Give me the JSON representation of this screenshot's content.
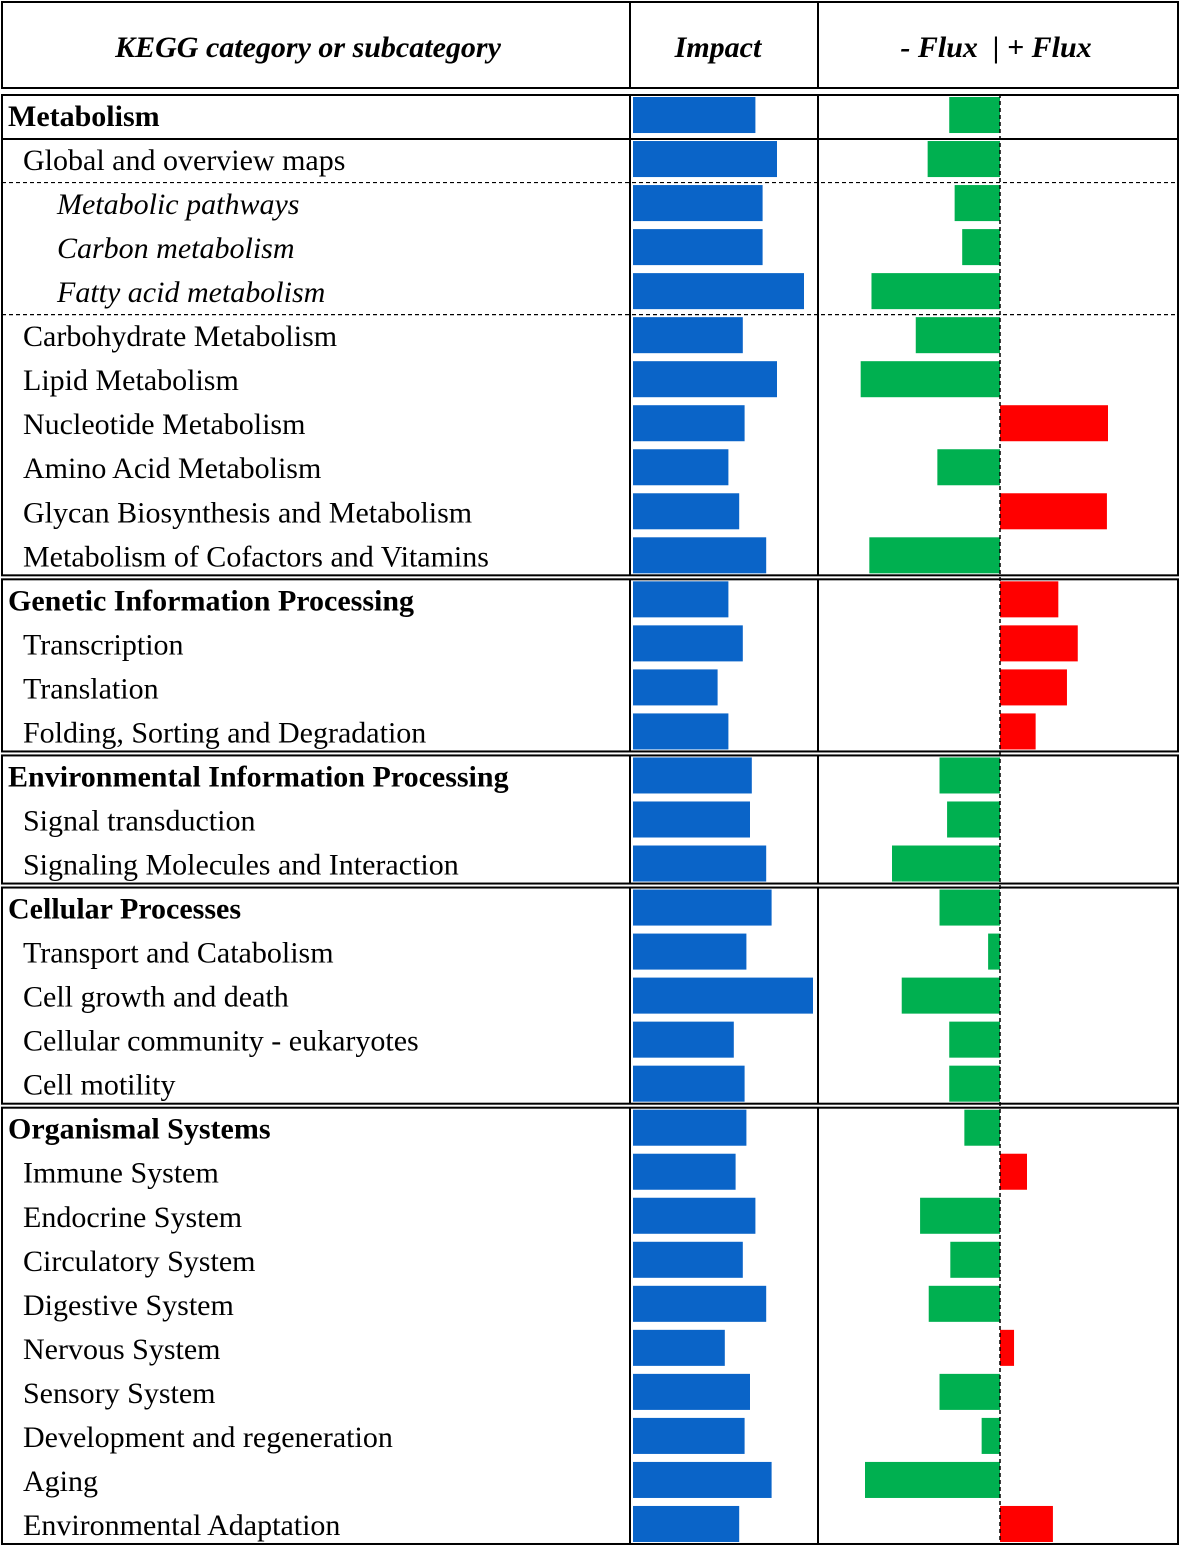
{
  "header": {
    "category_label": "KEGG category or subcategory",
    "impact_label": "Impact",
    "flux_label": "- Flux  | + Flux"
  },
  "colors": {
    "impact": "#0a64c8",
    "flux_positive": "#ff0000",
    "flux_negative": "#00b050",
    "border": "#000000"
  },
  "chart_data": {
    "type": "bar",
    "title": "",
    "series": [
      {
        "name": "Impact",
        "values": [
          0.68,
          0.8,
          0.72,
          0.72,
          0.95,
          0.61,
          0.8,
          0.62,
          0.53,
          0.59,
          0.74,
          0.53,
          0.61,
          0.47,
          0.53,
          0.66,
          0.65,
          0.74,
          0.77,
          0.63,
          1.0,
          0.56,
          0.62,
          0.63,
          0.57,
          0.68,
          0.61,
          0.74,
          0.51,
          0.65,
          0.62,
          0.77,
          0.59
        ]
      },
      {
        "name": "Flux",
        "values": [
          -0.47,
          -0.67,
          -0.42,
          -0.35,
          -1.19,
          -0.78,
          -1.29,
          1.0,
          -0.58,
          0.99,
          -1.21,
          0.54,
          0.72,
          0.62,
          0.33,
          -0.56,
          -0.49,
          -1.0,
          -0.56,
          -0.11,
          -0.91,
          -0.47,
          -0.47,
          -0.33,
          0.25,
          -0.74,
          -0.46,
          -0.66,
          0.13,
          -0.56,
          -0.17,
          -1.25,
          0.49
        ]
      }
    ],
    "categories": [
      {
        "label": "Metabolism",
        "level": "category",
        "group": 0
      },
      {
        "label": "Global and overview maps",
        "level": "subcategory",
        "group": 0
      },
      {
        "label": "Metabolic pathways",
        "level": "sub-subcategory",
        "group": 0
      },
      {
        "label": "Carbon metabolism",
        "level": "sub-subcategory",
        "group": 0
      },
      {
        "label": "Fatty acid metabolism",
        "level": "sub-subcategory",
        "group": 0
      },
      {
        "label": "Carbohydrate Metabolism",
        "level": "subcategory",
        "group": 0
      },
      {
        "label": "Lipid Metabolism",
        "level": "subcategory",
        "group": 0
      },
      {
        "label": "Nucleotide Metabolism",
        "level": "subcategory",
        "group": 0
      },
      {
        "label": "Amino Acid Metabolism",
        "level": "subcategory",
        "group": 0
      },
      {
        "label": "Glycan Biosynthesis and Metabolism",
        "level": "subcategory",
        "group": 0
      },
      {
        "label": "Metabolism of Cofactors and Vitamins",
        "level": "subcategory",
        "group": 0
      },
      {
        "label": "Genetic Information Processing",
        "level": "category",
        "group": 1
      },
      {
        "label": "Transcription",
        "level": "subcategory",
        "group": 1
      },
      {
        "label": "Translation",
        "level": "subcategory",
        "group": 1
      },
      {
        "label": "Folding, Sorting and Degradation",
        "level": "subcategory",
        "group": 1
      },
      {
        "label": "Environmental Information Processing",
        "level": "category",
        "group": 2
      },
      {
        "label": "Signal transduction",
        "level": "subcategory",
        "group": 2
      },
      {
        "label": "Signaling Molecules and Interaction",
        "level": "subcategory",
        "group": 2
      },
      {
        "label": "Cellular Processes",
        "level": "category",
        "group": 3
      },
      {
        "label": "Transport and Catabolism",
        "level": "subcategory",
        "group": 3
      },
      {
        "label": "Cell growth and death",
        "level": "subcategory",
        "group": 3
      },
      {
        "label": "Cellular community - eukaryotes",
        "level": "subcategory",
        "group": 3
      },
      {
        "label": "Cell motility",
        "level": "subcategory",
        "group": 3
      },
      {
        "label": "Organismal Systems",
        "level": "category",
        "group": 4
      },
      {
        "label": "Immune System",
        "level": "subcategory",
        "group": 4
      },
      {
        "label": "Endocrine System",
        "level": "subcategory",
        "group": 4
      },
      {
        "label": "Circulatory System",
        "level": "subcategory",
        "group": 4
      },
      {
        "label": "Digestive System",
        "level": "subcategory",
        "group": 4
      },
      {
        "label": "Nervous System",
        "level": "subcategory",
        "group": 4
      },
      {
        "label": "Sensory System",
        "level": "subcategory",
        "group": 4
      },
      {
        "label": "Development and regeneration",
        "level": "subcategory",
        "group": 4
      },
      {
        "label": "Aging",
        "level": "subcategory",
        "group": 4
      },
      {
        "label": "Environmental Adaptation",
        "level": "subcategory",
        "group": 4
      }
    ]
  }
}
